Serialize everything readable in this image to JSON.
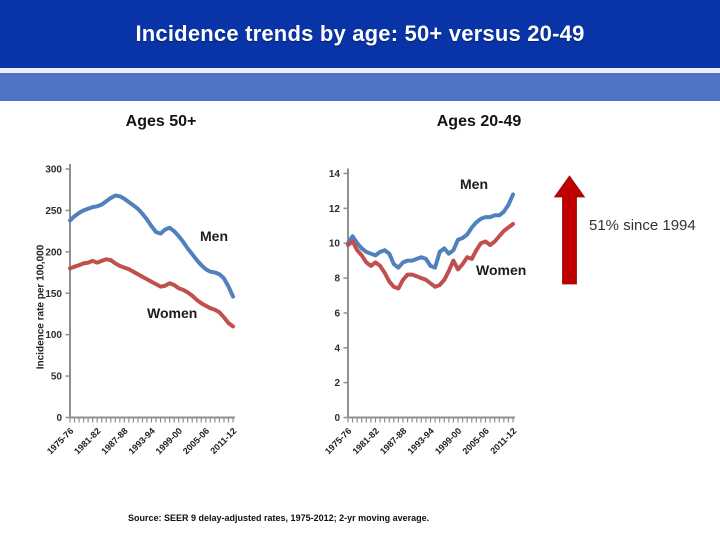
{
  "slide": {
    "title": "Incidence trends by age: 50+ versus 20-49",
    "source_note": "Source: SEER 9 delay-adjusted rates, 1975-2012; 2-yr moving average.",
    "annotation": {
      "text": "51% since 1994",
      "arrow_color": "#c00000"
    }
  },
  "colors": {
    "header_bg": "#0834a8",
    "divider_bg": "#e9f0fb",
    "band_bg": "#4f74c4",
    "axis": "#8f8f8f",
    "men": "#4f81bd",
    "women": "#c0504d"
  },
  "chart_data": [
    {
      "type": "line",
      "title": "Ages 50+",
      "ylabel": "Incidence rate per 100,000",
      "xlabel": "",
      "ylim": [
        0,
        300
      ],
      "yticks": [
        0,
        50,
        100,
        150,
        200,
        250,
        300
      ],
      "x_tick_labels": [
        "1975-76",
        "1981-82",
        "1987-88",
        "1993-94",
        "1999-00",
        "2005-06",
        "2011-12"
      ],
      "x_tick_indices": [
        0,
        6,
        12,
        18,
        24,
        30,
        36
      ],
      "n_points": 37,
      "grid": false,
      "legend_position": "inline-labels",
      "series": [
        {
          "name": "Men",
          "color": "#4f81bd",
          "values": [
            238,
            243,
            247,
            250,
            252,
            254,
            255,
            257,
            261,
            265,
            268,
            267,
            264,
            260,
            256,
            252,
            246,
            239,
            231,
            224,
            222,
            227,
            229,
            225,
            219,
            212,
            204,
            197,
            190,
            184,
            179,
            176,
            175,
            173,
            168,
            158,
            146
          ]
        },
        {
          "name": "Women",
          "color": "#c0504d",
          "values": [
            180,
            182,
            184,
            186,
            187,
            189,
            187,
            189,
            191,
            190,
            186,
            183,
            181,
            179,
            176,
            173,
            170,
            167,
            164,
            161,
            158,
            159,
            162,
            160,
            156,
            154,
            151,
            147,
            142,
            138,
            135,
            132,
            130,
            127,
            121,
            114,
            110
          ]
        }
      ]
    },
    {
      "type": "line",
      "title": "Ages 20-49",
      "ylabel": "",
      "xlabel": "",
      "ylim": [
        0,
        14
      ],
      "yticks": [
        0,
        2,
        4,
        6,
        8,
        10,
        12,
        14
      ],
      "x_tick_labels": [
        "1975-76",
        "1981-82",
        "1987-88",
        "1993-94",
        "1999-00",
        "2005-06",
        "2011-12"
      ],
      "x_tick_indices": [
        0,
        6,
        12,
        18,
        24,
        30,
        36
      ],
      "n_points": 37,
      "grid": false,
      "legend_position": "inline-labels",
      "series": [
        {
          "name": "Men",
          "color": "#4f81bd",
          "values": [
            10.0,
            10.4,
            10.0,
            9.7,
            9.5,
            9.4,
            9.3,
            9.5,
            9.6,
            9.4,
            8.8,
            8.6,
            8.9,
            9.0,
            9.0,
            9.1,
            9.2,
            9.1,
            8.7,
            8.6,
            9.5,
            9.7,
            9.4,
            9.6,
            10.2,
            10.3,
            10.5,
            10.9,
            11.2,
            11.4,
            11.5,
            11.5,
            11.6,
            11.6,
            11.8,
            12.2,
            12.8
          ]
        },
        {
          "name": "Women",
          "color": "#c0504d",
          "values": [
            9.9,
            10.1,
            9.6,
            9.3,
            8.9,
            8.7,
            8.9,
            8.7,
            8.3,
            7.8,
            7.5,
            7.4,
            7.9,
            8.2,
            8.2,
            8.1,
            8.0,
            7.9,
            7.7,
            7.5,
            7.6,
            7.9,
            8.4,
            9.0,
            8.5,
            8.8,
            9.2,
            9.1,
            9.6,
            10.0,
            10.1,
            9.9,
            10.1,
            10.4,
            10.7,
            10.9,
            11.1
          ]
        }
      ]
    }
  ]
}
